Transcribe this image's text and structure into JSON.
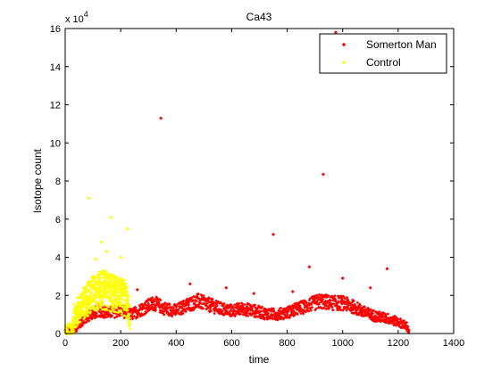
{
  "chart_data": {
    "type": "scatter",
    "title": "Ca43",
    "xlabel": "time",
    "ylabel": "Isotope count",
    "y_multiplier_label": "x 10",
    "y_multiplier_exponent": "4",
    "xlim": [
      0,
      1400
    ],
    "ylim": [
      0,
      16
    ],
    "xticks": [
      0,
      200,
      400,
      600,
      800,
      1000,
      1200,
      1400
    ],
    "yticks": [
      0,
      2,
      4,
      6,
      8,
      10,
      12,
      14,
      16
    ],
    "grid": false,
    "legend_position": "top-right",
    "series": [
      {
        "name": "Somerton Man",
        "color": "#ff0000",
        "marker": "diamond",
        "band_points": [
          [
            0,
            0.1
          ],
          [
            40,
            0.3
          ],
          [
            80,
            0.9
          ],
          [
            120,
            1.2
          ],
          [
            160,
            1.1
          ],
          [
            200,
            1.2
          ],
          [
            240,
            1.0
          ],
          [
            280,
            1.3
          ],
          [
            320,
            1.6
          ],
          [
            360,
            1.3
          ],
          [
            400,
            1.2
          ],
          [
            440,
            1.5
          ],
          [
            480,
            1.7
          ],
          [
            520,
            1.5
          ],
          [
            560,
            1.3
          ],
          [
            600,
            1.2
          ],
          [
            640,
            1.3
          ],
          [
            680,
            1.2
          ],
          [
            720,
            1.05
          ],
          [
            760,
            1.0
          ],
          [
            800,
            1.1
          ],
          [
            840,
            1.3
          ],
          [
            880,
            1.5
          ],
          [
            920,
            1.7
          ],
          [
            960,
            1.6
          ],
          [
            1000,
            1.6
          ],
          [
            1040,
            1.4
          ],
          [
            1080,
            1.1
          ],
          [
            1120,
            0.9
          ],
          [
            1160,
            0.8
          ],
          [
            1200,
            0.6
          ],
          [
            1230,
            0.4
          ],
          [
            1240,
            0.1
          ]
        ],
        "outliers": [
          [
            345,
            11.3
          ],
          [
            750,
            5.2
          ],
          [
            930,
            8.35
          ],
          [
            975,
            15.8
          ],
          [
            880,
            3.5
          ],
          [
            1160,
            3.4
          ],
          [
            1000,
            2.9
          ],
          [
            580,
            2.4
          ],
          [
            260,
            2.3
          ],
          [
            680,
            2.1
          ],
          [
            1100,
            2.4
          ],
          [
            450,
            2.6
          ],
          [
            820,
            2.2
          ]
        ]
      },
      {
        "name": "Control",
        "color": "#ffff00",
        "marker": "diamond",
        "band_points": [
          [
            0,
            0.05
          ],
          [
            20,
            0.15
          ],
          [
            40,
            0.9
          ],
          [
            70,
            1.6
          ],
          [
            100,
            2.1
          ],
          [
            130,
            2.3
          ],
          [
            160,
            2.2
          ],
          [
            190,
            2.0
          ],
          [
            220,
            1.8
          ],
          [
            235,
            0.5
          ]
        ],
        "outliers": [
          [
            85,
            7.1
          ],
          [
            165,
            6.1
          ],
          [
            225,
            5.5
          ],
          [
            130,
            4.8
          ],
          [
            150,
            4.3
          ],
          [
            110,
            3.9
          ],
          [
            200,
            4.0
          ]
        ]
      }
    ]
  }
}
